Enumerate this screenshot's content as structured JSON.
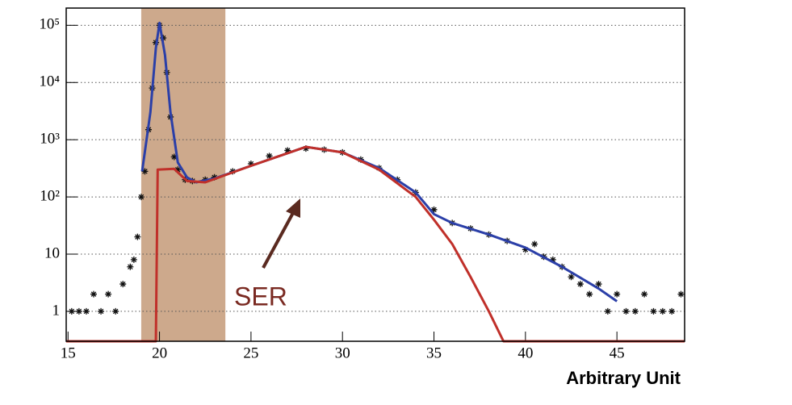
{
  "chart_data": {
    "type": "scatter",
    "xlabel": "Arbitrary Unit",
    "log_y": true,
    "grid": "y",
    "xlim": [
      14.9,
      48.7
    ],
    "ylim": [
      0.3,
      200000
    ],
    "xticks": [
      15,
      20,
      25,
      30,
      35,
      40,
      45
    ],
    "yticks": [
      1,
      10,
      {
        "value": 100,
        "label": "10²"
      },
      {
        "value": 1000,
        "label": "10³"
      },
      {
        "value": 10000,
        "label": "10⁴"
      },
      {
        "value": 100000,
        "label": "10⁵"
      }
    ],
    "highlight_x": [
      19,
      23.6
    ],
    "highlight_color": "#c49a78",
    "annotations": [
      {
        "text": "SER",
        "color": "#7a2a22"
      }
    ],
    "series": [
      {
        "type": "scatter",
        "color": "#111111",
        "x": [
          15.2,
          15.6,
          16,
          16.4,
          16.8,
          17.2,
          17.6,
          18,
          18.4,
          18.6,
          18.8,
          19,
          19.2,
          19.4,
          19.6,
          19.8,
          20,
          20.2,
          20.4,
          20.6,
          20.8,
          21,
          21.4,
          21.8,
          22.5,
          23,
          24,
          25,
          26,
          27,
          28,
          29,
          30,
          31,
          32,
          33,
          34,
          35,
          36,
          37,
          38,
          39,
          40,
          40.5,
          41,
          41.5,
          42,
          42.5,
          43,
          43.5,
          44,
          44.5,
          45,
          45.5,
          46,
          46.5,
          47,
          47.5,
          48,
          48.5
        ],
        "values": [
          1,
          1,
          1,
          2,
          1,
          2,
          1,
          3,
          6,
          8,
          20,
          100,
          280,
          1500,
          8000,
          50000,
          100000,
          60000,
          15000,
          2500,
          500,
          300,
          200,
          190,
          200,
          220,
          280,
          380,
          520,
          650,
          700,
          670,
          600,
          450,
          320,
          200,
          120,
          60,
          35,
          28,
          22,
          17,
          12,
          15,
          9,
          8,
          6,
          4,
          3,
          2,
          3,
          1,
          2,
          1,
          1,
          2,
          1,
          1,
          1,
          2
        ]
      },
      {
        "type": "line",
        "color": "#2b3fa8",
        "x": [
          19.05,
          19.5,
          19.8,
          20,
          20.3,
          20.6,
          21,
          21.5,
          22,
          23,
          25,
          28,
          30,
          32,
          34,
          35,
          36,
          38,
          40,
          42,
          44,
          45
        ],
        "values": [
          280,
          3000,
          40000,
          110000,
          30000,
          3000,
          400,
          220,
          180,
          210,
          350,
          750,
          600,
          320,
          120,
          50,
          35,
          22,
          13,
          6,
          2.5,
          1.5
        ]
      },
      {
        "type": "line",
        "color": "#c0302a",
        "x": [
          14.9,
          19.8,
          19.9,
          20.8,
          21.5,
          22.5,
          25,
          28,
          30,
          32,
          34,
          35,
          36,
          37,
          38,
          38.8,
          48.7
        ],
        "values": [
          0.3,
          0.3,
          300,
          310,
          190,
          180,
          350,
          750,
          600,
          300,
          100,
          40,
          15,
          4,
          1,
          0.3,
          0.3
        ]
      }
    ]
  }
}
